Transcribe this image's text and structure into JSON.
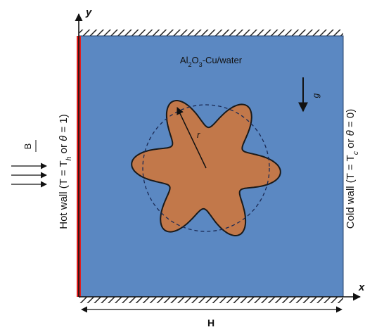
{
  "axes": {
    "x": "x",
    "y": "y"
  },
  "medium_label": "Al2O3-Cu/water",
  "gravity_label": "g",
  "radius_label": "r",
  "magnetic_field_label": "B",
  "hot_wall_label": "Hot wall (T = Th or θ = 1)",
  "cold_wall_label": "Cold wall (T = Tc or θ = 0)",
  "width_label": "H",
  "colors": {
    "cavity_fill": "#5b88c2",
    "cavity_border": "#23406b",
    "hot_wall": "#e11d1d",
    "obstacle_fill": "#c2784a",
    "obstacle_stroke": "#1a1a1a",
    "hatch": "#222222"
  }
}
